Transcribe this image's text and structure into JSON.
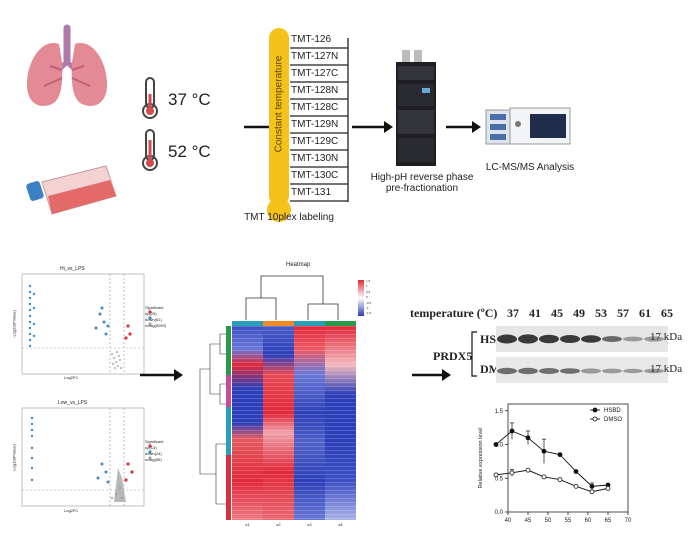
{
  "workflow": {
    "temperatures": [
      "37 °C",
      "52 °C"
    ],
    "tmt_column_label": "Constant temperature",
    "tmt_channels": [
      "TMT-126",
      "TMT-127N",
      "TMT-127C",
      "TMT-128N",
      "TMT-128C",
      "TMT-129N",
      "TMT-129C",
      "TMT-130N",
      "TMT-130C",
      "TMT-131"
    ],
    "tmt_caption": "TMT 10plex labeling",
    "fractionation_caption_line1": "High-pH reverse phase",
    "fractionation_caption_line2": "pre-fractionation",
    "lcms_caption": "LC-MS/MS Analysis"
  },
  "volcano_plots": [
    {
      "title": "Hi_vs_LPS",
      "xlabel": "Log2FC",
      "ylabel": "-Log10(PValue)",
      "legend_title": "Significant",
      "legend": [
        "up(25)",
        "down(61)",
        "nosig(5050)"
      ]
    },
    {
      "title": "Low_vs_LPS",
      "xlabel": "Log2FC",
      "ylabel": "-Log10(PValue)",
      "legend_title": "Significant",
      "legend": [
        "up(13)",
        "down(24)",
        "nosig(56)"
      ]
    }
  ],
  "heatmap": {
    "title": "Heatmap",
    "scale_ticks": [
      "1.5",
      "1",
      "0.5",
      "0",
      "-0.5",
      "-1",
      "-1.5"
    ],
    "column_labels": [
      "s1",
      "s2",
      "s3",
      "s4"
    ],
    "colors": {
      "high": "#e0283a",
      "mid": "#ffffff",
      "low": "#2d3fb8"
    }
  },
  "western_blot": {
    "header_label": "temperature (ºC)",
    "temperatures": [
      "37",
      "41",
      "45",
      "49",
      "53",
      "57",
      "61",
      "65"
    ],
    "protein": "PRDX5",
    "rows": [
      "HSBD",
      "DMSO"
    ],
    "size_labels": [
      "17 kDa",
      "17 kDa"
    ]
  },
  "chart_data": {
    "type": "line",
    "xlabel": "",
    "ylabel": "Relative expression level",
    "xticks": [
      40,
      45,
      50,
      55,
      60,
      65,
      70
    ],
    "yticks": [
      0.0,
      0.5,
      1.0,
      1.5
    ],
    "xlim": [
      40,
      70
    ],
    "ylim": [
      0,
      1.6
    ],
    "series": [
      {
        "name": "HSBD",
        "marker": "filled",
        "x": [
          37,
          41,
          45,
          49,
          53,
          57,
          61,
          65
        ],
        "y": [
          1.0,
          1.2,
          1.1,
          0.9,
          0.85,
          0.6,
          0.38,
          0.4
        ],
        "err": [
          0,
          0.12,
          0.1,
          0.18,
          0,
          0,
          0.05,
          0
        ]
      },
      {
        "name": "DMSO",
        "marker": "open",
        "x": [
          37,
          41,
          45,
          49,
          53,
          57,
          61,
          65
        ],
        "y": [
          0.55,
          0.58,
          0.62,
          0.52,
          0.48,
          0.38,
          0.3,
          0.35
        ],
        "err": [
          0,
          0.05,
          0,
          0,
          0,
          0,
          0,
          0
        ]
      }
    ],
    "legend_position": "top-right"
  }
}
